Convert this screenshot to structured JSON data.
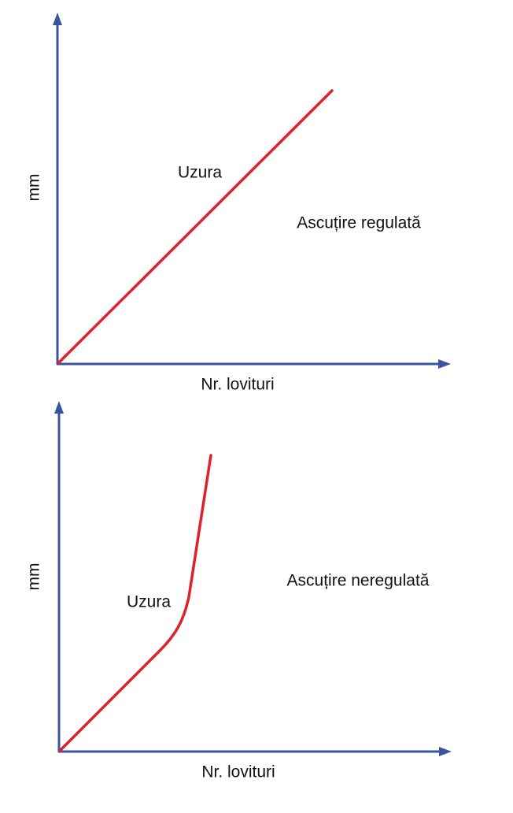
{
  "diagrams": [
    {
      "y_label": "mm",
      "x_label": "Nr. lovituri",
      "curve_label": "Uzura",
      "caption": "Ascuțire regulată"
    },
    {
      "y_label": "mm",
      "x_label": "Nr. lovituri",
      "curve_label": "Uzura",
      "caption": "Ascuțire neregulată"
    }
  ]
}
